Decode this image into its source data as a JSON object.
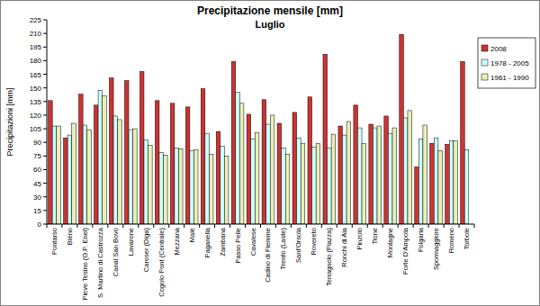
{
  "chart_data": {
    "type": "bar",
    "title": "Precipitazione mensile [mm]",
    "subtitle": "Luglio",
    "y_label": "Precipitazioni [mm]",
    "categories": [
      "Pontarso",
      "Bieno",
      "Pieve Tesino (O.P. Enel)",
      "S. Martino di Castrozza",
      "Canal San Bovo",
      "Lavarone",
      "Careser (Diga)",
      "Cogolo Pont (Centrale)",
      "Mezzana",
      "Malè",
      "Paganella",
      "Zambana",
      "Passo Pelle",
      "Cavalese",
      "Cadino di Fiemme",
      "Trento (Laste)",
      "Sant'Orsola",
      "Rovereto",
      "Terragnolo (Piazza)",
      "Ronchi di Ala",
      "Pinzolo",
      "Tione",
      "Montagne",
      "Forte D'Ampola",
      "Folgaria",
      "Spormaggiore",
      "Romeno",
      "Torbole"
    ],
    "series": [
      {
        "name": "2008",
        "color": "#cc3333",
        "values": [
          136,
          95,
          143,
          131,
          161,
          158,
          168,
          136,
          133,
          129,
          149,
          102,
          179,
          121,
          137,
          111,
          123,
          140,
          187,
          108,
          131,
          110,
          119,
          209,
          63,
          89,
          88,
          179
        ]
      },
      {
        "name": "1978 - 2005",
        "color": "#ccffff",
        "values": [
          108,
          98,
          109,
          147,
          119,
          104,
          93,
          79,
          84,
          81,
          100,
          86,
          145,
          94,
          110,
          84,
          95,
          85,
          84,
          98,
          106,
          106,
          100,
          117,
          94,
          95,
          92,
          82
        ]
      },
      {
        "name": "1961 - 1990",
        "color": "#e8f0b8",
        "values": [
          108,
          111,
          104,
          141,
          115,
          105,
          87,
          76,
          83,
          82,
          77,
          75,
          133,
          101,
          120,
          77,
          89,
          89,
          99,
          113,
          89,
          108,
          106,
          125,
          109,
          81,
          92,
          null
        ]
      }
    ],
    "ylim": [
      0,
      225
    ],
    "yticks": [
      0,
      15,
      30,
      45,
      60,
      75,
      90,
      105,
      120,
      135,
      150,
      165,
      180,
      195,
      210,
      225
    ],
    "grid": false,
    "legend": "right"
  }
}
